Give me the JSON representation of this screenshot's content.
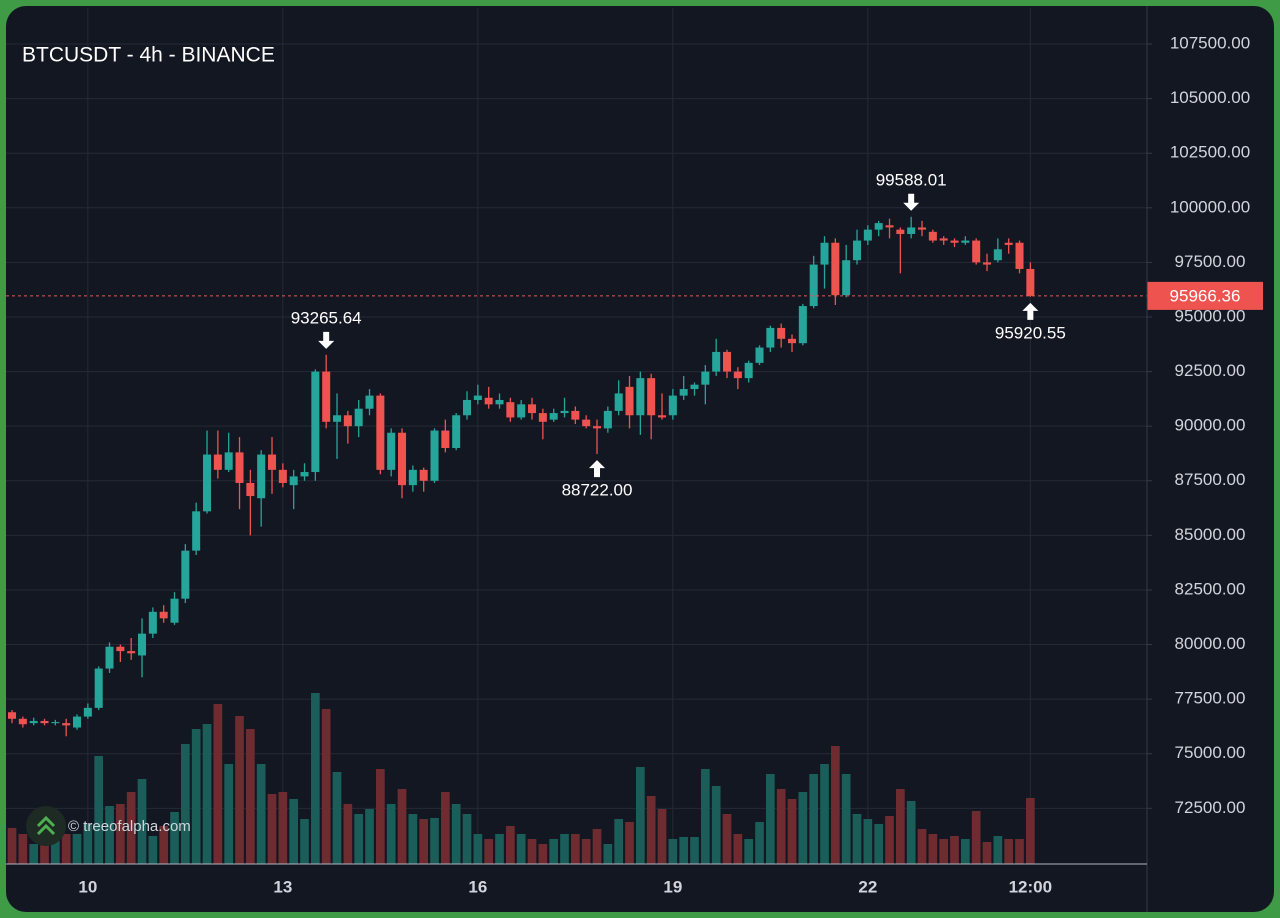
{
  "chart_data": {
    "type": "candlestick",
    "title": "BTCUSDT - 4h - BINANCE",
    "watermark": "© treeofalpha.com",
    "categories": [
      null,
      null,
      null,
      null,
      null,
      null,
      null,
      "10",
      null,
      null,
      null,
      null,
      null,
      null,
      null,
      null,
      null,
      null,
      null,
      null,
      null,
      null,
      null,
      null,
      null,
      "13",
      null,
      null,
      null,
      null,
      null,
      null,
      null,
      null,
      null,
      null,
      null,
      null,
      null,
      null,
      null,
      null,
      null,
      "16",
      null,
      null,
      null,
      null,
      null,
      null,
      null,
      null,
      null,
      null,
      null,
      null,
      null,
      null,
      null,
      null,
      null,
      "19",
      null,
      null,
      null,
      null,
      null,
      null,
      null,
      null,
      null,
      null,
      null,
      null,
      null,
      null,
      null,
      null,
      null,
      "22",
      null,
      null,
      null,
      null,
      null,
      null,
      null,
      null,
      null,
      null,
      null,
      null,
      null,
      null,
      "12:00"
    ],
    "open": [
      76900,
      76600,
      76400,
      76500,
      76400,
      76400,
      76200,
      76700,
      77100,
      78900,
      79900,
      79700,
      79500,
      80500,
      81500,
      81000,
      82100,
      84300,
      86100,
      88700,
      88000,
      88800,
      87400,
      86700,
      88700,
      88000,
      87300,
      87700,
      87900,
      92500,
      90200,
      90500,
      90000,
      90800,
      91400,
      88000,
      89700,
      87300,
      88000,
      87500,
      89800,
      89000,
      90500,
      91200,
      91300,
      91000,
      91100,
      90400,
      91000,
      90600,
      90300,
      90600,
      90700,
      90300,
      90000,
      89900,
      90700,
      91800,
      90500,
      92200,
      90500,
      90500,
      91400,
      91700,
      91900,
      92500,
      93400,
      92500,
      92200,
      92900,
      93600,
      94500,
      94000,
      93800,
      95500,
      97400,
      98400,
      96000,
      97600,
      98500,
      99000,
      99200,
      99000,
      98800,
      99100,
      98900,
      98600,
      98500,
      98400,
      98500,
      97500,
      97600,
      98400,
      98400,
      97200
    ],
    "high": [
      77000,
      76700,
      76650,
      76600,
      76550,
      76600,
      76800,
      77300,
      79000,
      80100,
      80000,
      80300,
      81200,
      81700,
      81800,
      82400,
      84600,
      86500,
      89800,
      89800,
      89700,
      89500,
      88000,
      88900,
      89500,
      88300,
      88000,
      88300,
      92600,
      93265.64,
      91500,
      90700,
      91200,
      91700,
      91500,
      89900,
      89900,
      88200,
      88100,
      89900,
      90300,
      90600,
      91600,
      91900,
      91800,
      91500,
      91300,
      91200,
      91300,
      90800,
      90800,
      91300,
      90900,
      90500,
      90300,
      90900,
      92100,
      92300,
      92500,
      92400,
      91500,
      91700,
      92300,
      92000,
      92800,
      94000,
      93500,
      92700,
      93000,
      93700,
      94600,
      94700,
      94200,
      95600,
      97800,
      98700,
      98600,
      98300,
      99000,
      99200,
      99400,
      99500,
      99100,
      99588.01,
      99400,
      99000,
      98700,
      98600,
      98700,
      98600,
      97900,
      98600,
      98600,
      98500,
      97500
    ],
    "low": [
      76400,
      76200,
      76300,
      76300,
      76300,
      75800,
      76100,
      76600,
      77000,
      78700,
      79200,
      79300,
      78500,
      80300,
      81000,
      80900,
      81900,
      84100,
      86000,
      87600,
      87900,
      86200,
      85000,
      85400,
      86900,
      87200,
      86200,
      87500,
      87500,
      89900,
      88500,
      89200,
      89500,
      90500,
      87800,
      87700,
      86700,
      87000,
      87000,
      87400,
      88800,
      88900,
      90300,
      91000,
      90800,
      90800,
      90200,
      90300,
      90300,
      89400,
      90200,
      90400,
      90100,
      89900,
      88722,
      89700,
      90500,
      89900,
      89600,
      89400,
      90300,
      90300,
      91200,
      91400,
      91000,
      92300,
      92200,
      91700,
      92000,
      92800,
      93400,
      93600,
      93400,
      93700,
      95400,
      96300,
      95550,
      95900,
      97400,
      98300,
      98700,
      98600,
      97000,
      98600,
      98700,
      98400,
      98300,
      98200,
      98300,
      97400,
      97100,
      97500,
      97900,
      97000,
      95920.55
    ],
    "close": [
      76600,
      76350,
      76500,
      76400,
      76450,
      76300,
      76700,
      77100,
      78900,
      79900,
      79700,
      79600,
      80500,
      81500,
      81200,
      82100,
      84300,
      86100,
      88700,
      88000,
      88800,
      87400,
      86800,
      88700,
      88000,
      87400,
      87700,
      87900,
      92500,
      90200,
      90500,
      90000,
      90800,
      91400,
      88000,
      89700,
      87300,
      88000,
      87500,
      89800,
      89000,
      90500,
      91200,
      91400,
      91000,
      91200,
      90400,
      91000,
      90600,
      90200,
      90600,
      90700,
      90300,
      90000,
      89900,
      90700,
      91500,
      90500,
      92200,
      90500,
      90400,
      91400,
      91700,
      91900,
      92500,
      93400,
      92500,
      92200,
      92900,
      93600,
      94500,
      94000,
      93800,
      95500,
      97400,
      98400,
      96000,
      97600,
      98500,
      99000,
      99300,
      99100,
      98800,
      99100,
      99000,
      98500,
      98500,
      98400,
      98500,
      97500,
      97400,
      98100,
      98300,
      97200,
      95966.36
    ],
    "volume": [
      3600,
      3000,
      2000,
      2500,
      2500,
      3000,
      3000,
      4000,
      10800,
      5800,
      6000,
      7200,
      8500,
      2800,
      3800,
      5200,
      12000,
      13500,
      14000,
      16000,
      10000,
      14800,
      13500,
      10000,
      7000,
      7200,
      6500,
      4500,
      17100,
      15500,
      9200,
      6000,
      5000,
      5500,
      9500,
      6000,
      7500,
      5000,
      4500,
      4600,
      7200,
      6000,
      5000,
      3000,
      2500,
      3000,
      3800,
      3000,
      2500,
      2000,
      2500,
      3000,
      3000,
      2500,
      3500,
      2000,
      4500,
      4200,
      9700,
      6800,
      5500,
      2500,
      2700,
      2700,
      9500,
      7800,
      5000,
      3000,
      2500,
      4200,
      9000,
      7500,
      6500,
      7200,
      9000,
      10000,
      11800,
      9000,
      5000,
      4500,
      4000,
      4800,
      7500,
      6300,
      3500,
      3000,
      2500,
      2800,
      2500,
      5300,
      2200,
      2800,
      2500,
      2500,
      6600
    ],
    "up_color": "#26a69a",
    "down_color": "#ef5350",
    "up_volume_color": "#1b5e59",
    "down_volume_color": "#6e2c31",
    "ylim": [
      69950,
      109150
    ],
    "yticks": [
      {
        "value": 72500,
        "label": "72500.00"
      },
      {
        "value": 75000,
        "label": "75000.00"
      },
      {
        "value": 77500,
        "label": "77500.00"
      },
      {
        "value": 80000,
        "label": "80000.00"
      },
      {
        "value": 82500,
        "label": "82500.00"
      },
      {
        "value": 85000,
        "label": "85000.00"
      },
      {
        "value": 87500,
        "label": "87500.00"
      },
      {
        "value": 90000,
        "label": "90000.00"
      },
      {
        "value": 92500,
        "label": "92500.00"
      },
      {
        "value": 95000,
        "label": "95000.00"
      },
      {
        "value": 97500,
        "label": "97500.00"
      },
      {
        "value": 100000,
        "label": "100000.00"
      },
      {
        "value": 102500,
        "label": "102500.00"
      },
      {
        "value": 105000,
        "label": "105000.00"
      },
      {
        "value": 107500,
        "label": "107500.00"
      }
    ],
    "grid": true,
    "annotations": [
      {
        "candle": 29,
        "kind": "high",
        "value": 93265.64,
        "label": "93265.64"
      },
      {
        "candle": 54,
        "kind": "low",
        "value": 88722,
        "label": "88722.00"
      },
      {
        "candle": 83,
        "kind": "high",
        "value": 99588.01,
        "label": "99588.01"
      },
      {
        "candle": 94,
        "kind": "low",
        "value": 95920.55,
        "label": "95920.55"
      }
    ]
  }
}
